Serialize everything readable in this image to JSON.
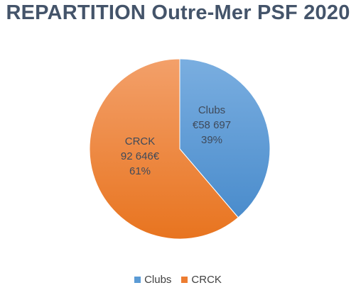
{
  "chart_data": {
    "type": "pie",
    "title": "REPARTITION Outre-Mer PSF 2020",
    "series": [
      {
        "name": "Clubs",
        "value": 58697,
        "percent": 39,
        "label_lines": [
          "Clubs",
          "€58 697",
          "39%"
        ],
        "color": "#5b9bd5"
      },
      {
        "name": "CRCK",
        "value": 92646,
        "percent": 61,
        "label_lines": [
          "CRCK",
          "92 646€",
          "61%"
        ],
        "color": "#ed7d31"
      }
    ],
    "legend": {
      "position": "bottom",
      "entries": [
        "Clubs",
        "CRCK"
      ]
    }
  }
}
